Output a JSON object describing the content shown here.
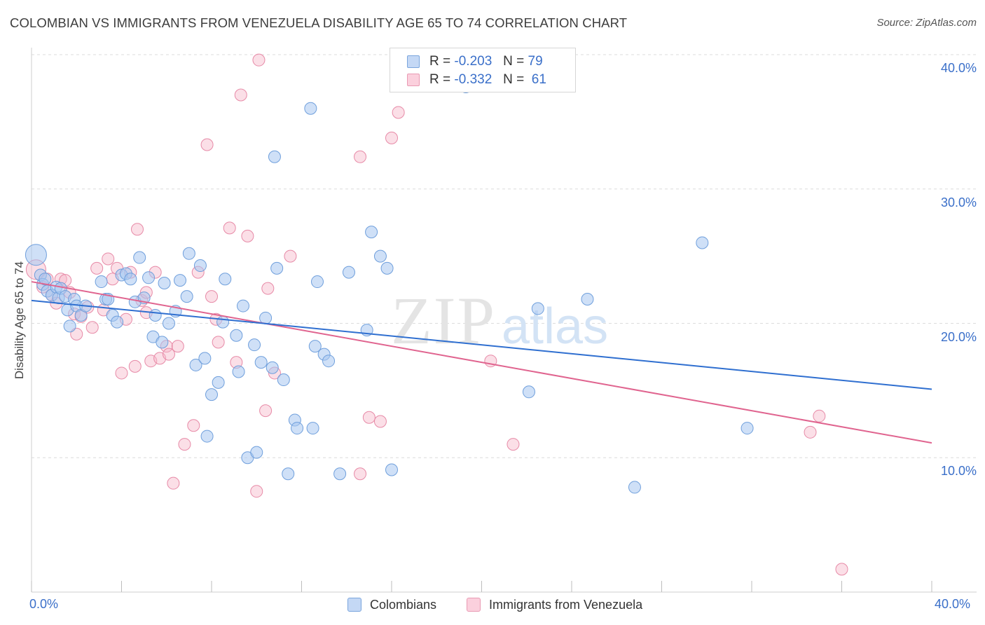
{
  "header": {
    "title": "COLOMBIAN VS IMMIGRANTS FROM VENEZUELA DISABILITY AGE 65 TO 74 CORRELATION CHART",
    "source": "Source: ZipAtlas.com"
  },
  "watermark": {
    "zip": "ZIP",
    "atlas": "atlas"
  },
  "stats": {
    "r_label": "R =",
    "n_label": "N =",
    "rows": [
      {
        "r": "-0.203",
        "n": "79",
        "color": "#a8c7f0"
      },
      {
        "r": "-0.332",
        "n": "61",
        "color": "#f6b8ca"
      }
    ]
  },
  "legend": {
    "items": [
      {
        "label": "Colombians",
        "color": "#a8c7f0"
      },
      {
        "label": "Immigrants from Venezuela",
        "color": "#f6b8ca"
      }
    ]
  },
  "colors": {
    "blue_fill": "#a8c7f0",
    "blue_stroke": "#6f9fdc",
    "blue_line": "#2f6fd0",
    "pink_fill": "#f6b8ca",
    "pink_stroke": "#e78aa7",
    "pink_line": "#e0648f",
    "axis_label": "#3a6fc9",
    "grid": "#dcdcdc"
  },
  "chart_data": {
    "type": "scatter",
    "title": "COLOMBIAN VS IMMIGRANTS FROM VENEZUELA DISABILITY AGE 65 TO 74 CORRELATION CHART",
    "xlabel": "",
    "ylabel": "Disability Age 65 to 74",
    "xlim": [
      0,
      40
    ],
    "ylim": [
      0,
      40
    ],
    "x_tick_labels": [
      "0.0%",
      "40.0%"
    ],
    "y_ticks": [
      10,
      20,
      30,
      40
    ],
    "y_tick_labels": [
      "10.0%",
      "20.0%",
      "30.0%",
      "40.0%"
    ],
    "grid": "horizontal dashed",
    "legend_position": "bottom-center",
    "series": [
      {
        "name": "Colombians",
        "r": -0.203,
        "n": 79,
        "trend": {
          "x": [
            0,
            40
          ],
          "y": [
            21.7,
            15.1
          ]
        },
        "points": [
          [
            0.2,
            25.1
          ],
          [
            0.4,
            23.6
          ],
          [
            0.5,
            22.9
          ],
          [
            0.6,
            23.3
          ],
          [
            0.7,
            22.4
          ],
          [
            0.9,
            22.1
          ],
          [
            1.1,
            22.7
          ],
          [
            1.2,
            21.9
          ],
          [
            1.3,
            22.6
          ],
          [
            1.5,
            22.0
          ],
          [
            1.6,
            21.0
          ],
          [
            1.7,
            19.8
          ],
          [
            1.9,
            21.8
          ],
          [
            2.0,
            21.3
          ],
          [
            2.2,
            20.6
          ],
          [
            2.4,
            21.3
          ],
          [
            3.1,
            23.1
          ],
          [
            3.3,
            21.8
          ],
          [
            3.4,
            21.8
          ],
          [
            3.6,
            20.6
          ],
          [
            3.8,
            20.1
          ],
          [
            4.0,
            23.6
          ],
          [
            4.2,
            23.7
          ],
          [
            4.4,
            23.3
          ],
          [
            4.6,
            21.6
          ],
          [
            4.8,
            24.9
          ],
          [
            5.0,
            21.9
          ],
          [
            5.2,
            23.4
          ],
          [
            5.4,
            19.0
          ],
          [
            5.5,
            20.6
          ],
          [
            5.8,
            18.6
          ],
          [
            5.9,
            23.0
          ],
          [
            6.1,
            20.0
          ],
          [
            6.4,
            20.9
          ],
          [
            6.6,
            23.2
          ],
          [
            6.9,
            22.0
          ],
          [
            7.0,
            25.2
          ],
          [
            7.3,
            16.9
          ],
          [
            7.5,
            24.3
          ],
          [
            7.7,
            17.4
          ],
          [
            7.8,
            11.6
          ],
          [
            8.0,
            14.7
          ],
          [
            8.3,
            15.6
          ],
          [
            8.5,
            20.1
          ],
          [
            8.6,
            23.3
          ],
          [
            9.1,
            19.1
          ],
          [
            9.2,
            16.4
          ],
          [
            9.4,
            21.3
          ],
          [
            9.6,
            10.0
          ],
          [
            9.9,
            18.4
          ],
          [
            10.0,
            10.4
          ],
          [
            10.2,
            17.1
          ],
          [
            10.4,
            20.4
          ],
          [
            10.7,
            16.7
          ],
          [
            10.9,
            24.1
          ],
          [
            11.2,
            15.8
          ],
          [
            11.4,
            8.8
          ],
          [
            11.7,
            12.8
          ],
          [
            11.8,
            12.2
          ],
          [
            12.4,
            36.0
          ],
          [
            12.5,
            12.2
          ],
          [
            12.6,
            18.3
          ],
          [
            12.7,
            23.1
          ],
          [
            13.0,
            17.7
          ],
          [
            13.2,
            17.2
          ],
          [
            13.7,
            8.8
          ],
          [
            14.1,
            23.8
          ],
          [
            14.9,
            19.5
          ],
          [
            15.1,
            26.8
          ],
          [
            15.5,
            25.0
          ],
          [
            15.8,
            24.1
          ],
          [
            16.0,
            9.1
          ],
          [
            10.8,
            32.4
          ],
          [
            19.3,
            37.6
          ],
          [
            22.1,
            14.9
          ],
          [
            22.5,
            21.1
          ],
          [
            24.7,
            21.8
          ],
          [
            26.8,
            7.8
          ],
          [
            29.8,
            26.0
          ],
          [
            31.8,
            12.2
          ]
        ]
      },
      {
        "name": "Immigrants from Venezuela",
        "r": -0.332,
        "n": 61,
        "trend": {
          "x": [
            0,
            40
          ],
          "y": [
            23.1,
            11.1
          ]
        },
        "points": [
          [
            0.2,
            24.0
          ],
          [
            0.5,
            22.7
          ],
          [
            0.7,
            23.3
          ],
          [
            0.9,
            22.1
          ],
          [
            1.1,
            21.5
          ],
          [
            1.3,
            23.3
          ],
          [
            1.5,
            23.2
          ],
          [
            1.7,
            22.3
          ],
          [
            1.9,
            20.7
          ],
          [
            2.0,
            19.2
          ],
          [
            2.2,
            20.5
          ],
          [
            2.5,
            21.2
          ],
          [
            2.7,
            19.7
          ],
          [
            2.9,
            24.1
          ],
          [
            3.2,
            21.0
          ],
          [
            3.4,
            24.8
          ],
          [
            3.6,
            23.3
          ],
          [
            3.8,
            24.1
          ],
          [
            4.0,
            16.3
          ],
          [
            4.2,
            20.3
          ],
          [
            4.4,
            23.8
          ],
          [
            4.6,
            16.8
          ],
          [
            4.7,
            27.0
          ],
          [
            4.9,
            21.7
          ],
          [
            5.1,
            20.8
          ],
          [
            5.3,
            17.2
          ],
          [
            5.5,
            23.8
          ],
          [
            5.7,
            17.4
          ],
          [
            6.0,
            18.3
          ],
          [
            6.1,
            17.7
          ],
          [
            6.3,
            8.1
          ],
          [
            6.5,
            18.3
          ],
          [
            6.8,
            11.0
          ],
          [
            7.2,
            12.4
          ],
          [
            7.4,
            23.8
          ],
          [
            7.8,
            33.3
          ],
          [
            8.0,
            22.0
          ],
          [
            8.2,
            20.3
          ],
          [
            8.8,
            27.1
          ],
          [
            9.1,
            17.1
          ],
          [
            9.3,
            37.0
          ],
          [
            9.6,
            26.5
          ],
          [
            10.0,
            7.5
          ],
          [
            10.4,
            13.5
          ],
          [
            10.5,
            22.6
          ],
          [
            10.8,
            16.3
          ],
          [
            11.5,
            25.0
          ],
          [
            14.6,
            8.8
          ],
          [
            10.1,
            39.6
          ],
          [
            14.6,
            32.4
          ],
          [
            15.0,
            13.0
          ],
          [
            15.5,
            12.7
          ],
          [
            16.0,
            33.8
          ],
          [
            16.3,
            35.7
          ],
          [
            20.4,
            17.2
          ],
          [
            21.4,
            11.0
          ],
          [
            34.6,
            11.9
          ],
          [
            35.0,
            13.1
          ],
          [
            36.0,
            1.7
          ],
          [
            5.1,
            22.3
          ],
          [
            8.3,
            18.6
          ]
        ]
      }
    ]
  }
}
